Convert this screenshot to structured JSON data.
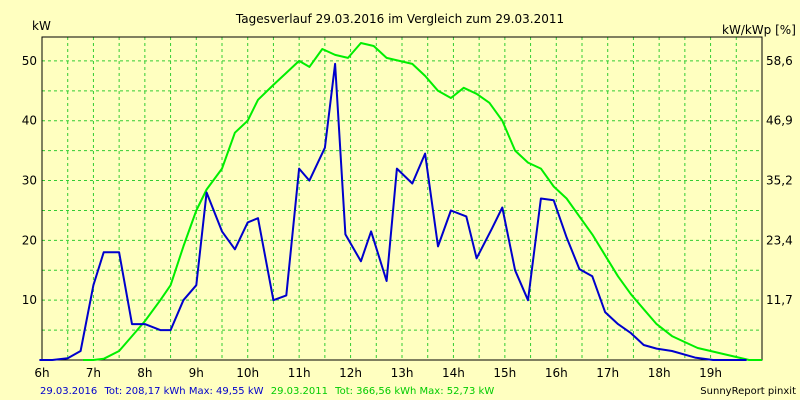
{
  "chart_data": {
    "type": "line",
    "title": "Tagesverlauf 29.03.2016 im Vergleich zum 29.03.2011",
    "ylabel_left": "kW",
    "ylabel_right": "kW/kWp [%]",
    "xlim": [
      6,
      20
    ],
    "ylim": [
      0,
      54
    ],
    "x_ticks": [
      "6h",
      "7h",
      "8h",
      "9h",
      "10h",
      "11h",
      "12h",
      "13h",
      "14h",
      "15h",
      "16h",
      "17h",
      "18h",
      "19h"
    ],
    "y_ticks_left": [
      "10",
      "20",
      "30",
      "40",
      "50"
    ],
    "y_ticks_right": [
      "11,7",
      "23,4",
      "35,2",
      "46,9",
      "58,6"
    ],
    "y_ticks_values": [
      10,
      20,
      30,
      40,
      50
    ],
    "grid": true,
    "legend_position": "bottom-left",
    "series": [
      {
        "name": "29.03.2016",
        "color": "#0000cc",
        "x": [
          5.95,
          6.2,
          6.5,
          6.75,
          7.0,
          7.2,
          7.5,
          7.75,
          8.0,
          8.3,
          8.5,
          8.75,
          9.0,
          9.2,
          9.5,
          9.75,
          10.0,
          10.2,
          10.5,
          10.75,
          11.0,
          11.2,
          11.5,
          11.7,
          11.9,
          12.2,
          12.4,
          12.7,
          12.9,
          13.2,
          13.45,
          13.7,
          13.95,
          14.25,
          14.45,
          14.75,
          14.95,
          15.2,
          15.45,
          15.7,
          15.95,
          16.2,
          16.45,
          16.7,
          16.95,
          17.2,
          17.45,
          17.7,
          17.95,
          18.25,
          18.7,
          19.05,
          19.2,
          19.5,
          19.7
        ],
        "y": [
          0,
          0,
          0.3,
          1.5,
          12.5,
          18,
          18,
          6,
          6,
          5,
          5,
          10,
          12.5,
          28,
          21.5,
          18.5,
          23,
          23.7,
          10,
          10.8,
          32,
          30,
          35.5,
          49.5,
          21,
          16.5,
          21.5,
          13.2,
          32,
          29.5,
          34.5,
          19,
          25,
          24,
          17,
          22,
          25.5,
          15,
          10,
          27,
          26.7,
          20.5,
          15.2,
          14,
          8,
          6,
          4.5,
          2.5,
          1.9,
          1.5,
          0.4,
          0,
          0,
          0,
          0
        ]
      },
      {
        "name": "29.03.2011",
        "color": "#00ee00",
        "x": [
          6.8,
          7.0,
          7.2,
          7.5,
          7.75,
          8.0,
          8.3,
          8.5,
          8.75,
          9.0,
          9.2,
          9.5,
          9.75,
          10.0,
          10.2,
          10.5,
          10.75,
          11.0,
          11.2,
          11.45,
          11.7,
          11.95,
          12.2,
          12.45,
          12.7,
          12.95,
          13.2,
          13.45,
          13.7,
          13.95,
          14.2,
          14.45,
          14.7,
          14.95,
          15.2,
          15.45,
          15.7,
          15.95,
          16.2,
          16.45,
          16.7,
          16.95,
          17.2,
          17.45,
          17.7,
          17.95,
          18.25,
          18.5,
          18.75,
          19.0,
          19.25,
          19.5,
          19.75,
          20.0
        ],
        "y": [
          0,
          0,
          0.2,
          1.5,
          4,
          6.5,
          10,
          12.5,
          19,
          25,
          28.5,
          32,
          38,
          40,
          43.5,
          46,
          48,
          50,
          49,
          52,
          51,
          50.5,
          53,
          52.5,
          50.5,
          50,
          49.5,
          47.5,
          45,
          43.8,
          45.5,
          44.5,
          43,
          40,
          35,
          33,
          32,
          29,
          27,
          24,
          21,
          17.5,
          14,
          11,
          8.5,
          6,
          4,
          3,
          2,
          1.5,
          1,
          0.5,
          0,
          0
        ]
      }
    ],
    "legend": {
      "entry1_date": "29.03.2016",
      "entry1_stats": "Tot: 208,17 kWh Max: 49,55 kW",
      "entry2_date": "29.03.2011",
      "entry2_stats": "Tot: 366,56 kWh Max: 52,73 kW"
    },
    "credit": "SunnyReport pinxit"
  }
}
